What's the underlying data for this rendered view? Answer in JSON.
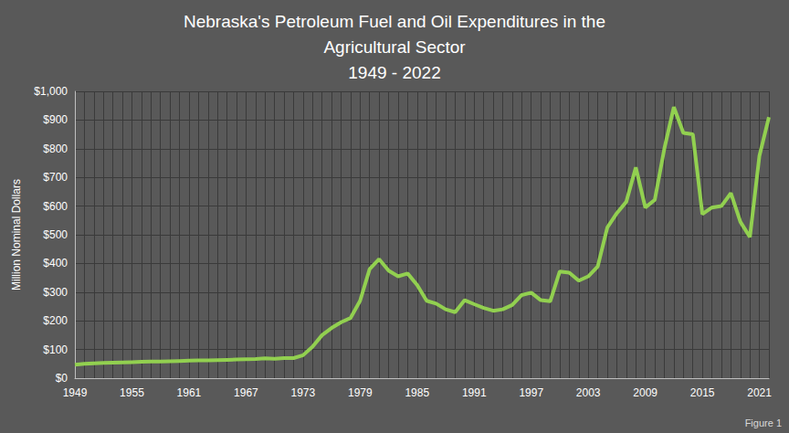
{
  "chart_data": {
    "type": "line",
    "title": "Nebraska's Petroleum Fuel and Oil Expenditures in the\nAgricultural Sector\n1949 - 2022",
    "y_label": "Million Nominal Dollars",
    "annotation": "Figure 1",
    "categories": [
      "1949",
      null,
      null,
      null,
      null,
      null,
      "1955",
      null,
      null,
      null,
      null,
      null,
      "1961",
      null,
      null,
      null,
      null,
      null,
      "1967",
      null,
      null,
      null,
      null,
      null,
      "1973",
      null,
      null,
      null,
      null,
      null,
      "1979",
      null,
      null,
      null,
      null,
      null,
      "1985",
      null,
      null,
      null,
      null,
      null,
      "1991",
      null,
      null,
      null,
      null,
      null,
      "1997",
      null,
      null,
      null,
      null,
      null,
      "2003",
      null,
      null,
      null,
      null,
      null,
      "2009",
      null,
      null,
      null,
      null,
      null,
      "2015",
      null,
      null,
      null,
      null,
      null,
      "2021",
      null
    ],
    "values": [
      47,
      50,
      52,
      53,
      54,
      55,
      56,
      57,
      58,
      58,
      59,
      60,
      61,
      62,
      62,
      63,
      64,
      65,
      66,
      67,
      69,
      68,
      70,
      70,
      80,
      110,
      150,
      175,
      195,
      210,
      270,
      380,
      415,
      375,
      355,
      365,
      325,
      270,
      260,
      240,
      230,
      272,
      258,
      245,
      235,
      240,
      255,
      290,
      298,
      272,
      268,
      372,
      368,
      340,
      355,
      390,
      525,
      575,
      615,
      735,
      595,
      622,
      800,
      945,
      855,
      850,
      572,
      595,
      600,
      645,
      545,
      492,
      775,
      910
    ],
    "color": "#92d050",
    "ylim": [
      0,
      1000
    ],
    "yticks": [
      {
        "value": 0,
        "label": "$0"
      },
      {
        "value": 100,
        "label": "$100"
      },
      {
        "value": 200,
        "label": "$200"
      },
      {
        "value": 300,
        "label": "$300"
      },
      {
        "value": 400,
        "label": "$400"
      },
      {
        "value": 500,
        "label": "$500"
      },
      {
        "value": 600,
        "label": "$600"
      },
      {
        "value": 700,
        "label": "$700"
      },
      {
        "value": 800,
        "label": "$800"
      },
      {
        "value": 900,
        "label": "$900"
      },
      {
        "value": 1000,
        "label": "$1,000"
      }
    ],
    "grid": true
  }
}
